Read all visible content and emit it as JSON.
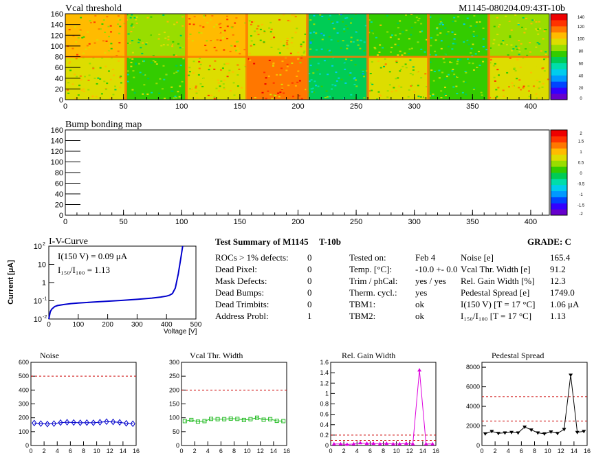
{
  "run_id": "M1145-080204.09:43T-10b",
  "colors": {
    "frame": "#000000",
    "noise": "#0000cc",
    "vcal": "#22bb22",
    "gain": "#dd00dd",
    "ped": "#000000",
    "cut": "#cc0000",
    "iv": "#0000cc"
  },
  "chart_data": [
    {
      "type": "heatmap",
      "title": "Vcal threshold",
      "xlim": [
        0,
        416
      ],
      "ylim": [
        0,
        160
      ],
      "xticks": [
        0,
        50,
        100,
        150,
        200,
        250,
        300,
        350,
        400
      ],
      "yticks": [
        0,
        20,
        40,
        60,
        80,
        100,
        120,
        140,
        160
      ],
      "zlim": [
        0,
        145
      ],
      "palette_ticks": [
        "140",
        "120",
        "100",
        "80",
        "60",
        "40",
        "20",
        "0"
      ],
      "roc_grid": {
        "cols": 8,
        "rows": 2
      },
      "roc_mean_level": [
        [
          0.72,
          0.6,
          0.75,
          0.7,
          0.45,
          0.55,
          0.5,
          0.6
        ],
        [
          0.65,
          0.55,
          0.7,
          0.8,
          0.45,
          0.65,
          0.55,
          0.7
        ]
      ]
    },
    {
      "type": "heatmap",
      "title": "Bump bonding map",
      "xlim": [
        0,
        416
      ],
      "ylim": [
        0,
        160
      ],
      "xticks": [
        0,
        50,
        100,
        150,
        200,
        250,
        300,
        350,
        400
      ],
      "yticks": [
        0,
        20,
        40,
        60,
        80,
        100,
        120,
        140,
        160
      ],
      "zlim": [
        -2,
        2
      ],
      "palette_ticks": [
        "2",
        "1.5",
        "1",
        "0.5",
        "0",
        "-0.5",
        "-1",
        "-1.5",
        "-2"
      ]
    },
    {
      "type": "line",
      "title": "I-V-Curve",
      "xlabel": "Voltage [V]",
      "ylabel": "Current [μA]",
      "xlim": [
        0,
        500
      ],
      "ylim": [
        0.01,
        100
      ],
      "log_y": true,
      "xticks": [
        "0",
        "100",
        "200",
        "300",
        "400",
        "500"
      ],
      "yticks": [
        {
          "exp": "-2"
        },
        {
          "exp": "-1"
        },
        {
          "exp": ""
        },
        {
          "exp": ""
        },
        {
          "exp": "2"
        }
      ],
      "ytick_plain": [
        "1",
        "10"
      ],
      "annotations": [
        "I(150 V) = 0.09 μA",
        "I₁₅₀/I₁₀₀ =  1.13"
      ],
      "x": [
        0,
        5,
        10,
        20,
        30,
        50,
        75,
        100,
        150,
        200,
        250,
        300,
        350,
        380,
        400,
        410,
        420,
        430,
        440,
        450,
        455
      ],
      "y": [
        0.01,
        0.025,
        0.035,
        0.048,
        0.055,
        0.062,
        0.07,
        0.075,
        0.085,
        0.095,
        0.105,
        0.12,
        0.14,
        0.16,
        0.18,
        0.2,
        0.25,
        0.5,
        3,
        30,
        100
      ]
    },
    {
      "type": "line",
      "title": "Noise",
      "xlim": [
        0,
        16
      ],
      "ylim": [
        0,
        600
      ],
      "xticks": [
        "0",
        "2",
        "4",
        "6",
        "8",
        "10",
        "12",
        "14",
        "16"
      ],
      "yticks": [
        "0",
        "100",
        "200",
        "300",
        "400",
        "500",
        "600"
      ],
      "cut": [
        500
      ],
      "marker": "diamond",
      "color_key": "noise",
      "x": [
        0.5,
        1.5,
        2.5,
        3.5,
        4.5,
        5.5,
        6.5,
        7.5,
        8.5,
        9.5,
        10.5,
        11.5,
        12.5,
        13.5,
        14.5,
        15.5
      ],
      "y": [
        162,
        158,
        155,
        158,
        165,
        168,
        166,
        164,
        165,
        164,
        168,
        172,
        170,
        167,
        160,
        157
      ]
    },
    {
      "type": "line",
      "title": "Vcal Thr. Width",
      "xlim": [
        0,
        16
      ],
      "ylim": [
        0,
        300
      ],
      "xticks": [
        "0",
        "2",
        "4",
        "6",
        "8",
        "10",
        "12",
        "14",
        "16"
      ],
      "yticks": [
        "0",
        "50",
        "100",
        "150",
        "200",
        "250",
        "300"
      ],
      "cut": [
        200
      ],
      "marker": "square",
      "color_key": "vcal",
      "x": [
        0.5,
        1.5,
        2.5,
        3.5,
        4.5,
        5.5,
        6.5,
        7.5,
        8.5,
        9.5,
        10.5,
        11.5,
        12.5,
        13.5,
        14.5,
        15.5
      ],
      "y": [
        88,
        92,
        86,
        88,
        96,
        95,
        95,
        97,
        96,
        92,
        95,
        100,
        93,
        95,
        89,
        88
      ]
    },
    {
      "type": "line",
      "title": "Rel. Gain Width",
      "xlim": [
        0,
        16
      ],
      "ylim": [
        0,
        1.6
      ],
      "xticks": [
        "0",
        "2",
        "4",
        "6",
        "8",
        "10",
        "12",
        "14",
        "16"
      ],
      "yticks": [
        "0",
        "0.2",
        "0.4",
        "0.6",
        "0.8",
        "1",
        "1.2",
        "1.4",
        "1.6"
      ],
      "cut": [
        0.1,
        0.2
      ],
      "marker": "triangle",
      "color_key": "gain",
      "x": [
        0.5,
        1.5,
        2.5,
        3.5,
        4.5,
        5.5,
        6.5,
        7.5,
        8.5,
        9.5,
        10.5,
        11.5,
        12.5,
        13.5,
        14.5,
        15.5
      ],
      "y": [
        0.03,
        0.03,
        0.02,
        0.03,
        0.05,
        0.04,
        0.04,
        0.03,
        0.04,
        0.03,
        0.03,
        0.04,
        0.03,
        1.45,
        0.03,
        0.03
      ]
    },
    {
      "type": "line",
      "title": "Pedestal Spread",
      "xlim": [
        0,
        16
      ],
      "ylim": [
        0,
        8500
      ],
      "xticks": [
        "0",
        "2",
        "4",
        "6",
        "8",
        "10",
        "12",
        "14",
        "16"
      ],
      "yticks": [
        "0",
        "2000",
        "4000",
        "6000",
        "8000"
      ],
      "cut": [
        2500,
        5000
      ],
      "marker": "inverted-triangle",
      "color_key": "ped",
      "x": [
        0.5,
        1.5,
        2.5,
        3.5,
        4.5,
        5.5,
        6.5,
        7.5,
        8.5,
        9.5,
        10.5,
        11.5,
        12.5,
        13.5,
        14.5,
        15.5
      ],
      "y": [
        1200,
        1450,
        1250,
        1300,
        1350,
        1300,
        1900,
        1600,
        1300,
        1200,
        1400,
        1250,
        1650,
        7200,
        1350,
        1450
      ]
    }
  ],
  "summary": {
    "title": "Test Summary of M1145",
    "tag": "T-10b",
    "grade": "GRADE:  C",
    "defects": [
      {
        "label": "ROCs > 1% defects:",
        "value": "0"
      },
      {
        "label": "Dead Pixel:",
        "value": "0"
      },
      {
        "label": "Mask Defects:",
        "value": "0"
      },
      {
        "label": "Dead Bumps:",
        "value": "0"
      },
      {
        "label": "Dead Trimbits:",
        "value": "0"
      },
      {
        "label": "Address Probl:",
        "value": "1"
      }
    ],
    "conditions": [
      {
        "label": "Tested on:",
        "value": "Feb 4"
      },
      {
        "label": "Temp. [°C]:",
        "value": "-10.0 +- 0.0"
      },
      {
        "label": "Trim / phCal:",
        "value": "yes / yes"
      },
      {
        "label": "Therm. cycl.:",
        "value": "yes"
      },
      {
        "label": "TBM1:",
        "value": "ok"
      },
      {
        "label": "TBM2:",
        "value": "ok"
      }
    ],
    "results": [
      {
        "label": "Noise [e]",
        "value": "165.4"
      },
      {
        "label": "Vcal Thr. Width [e]",
        "value": "91.2"
      },
      {
        "label": "Rel. Gain Width [%]",
        "value": "12.3"
      },
      {
        "label": "Pedestal Spread [e]",
        "value": "1749.0"
      },
      {
        "label": "I(150 V) [T = 17 °C]",
        "value": "1.06 μA"
      },
      {
        "label": "I₁₅₀/I₁₀₀   [T = 17 °C]",
        "value": "1.13"
      }
    ]
  }
}
